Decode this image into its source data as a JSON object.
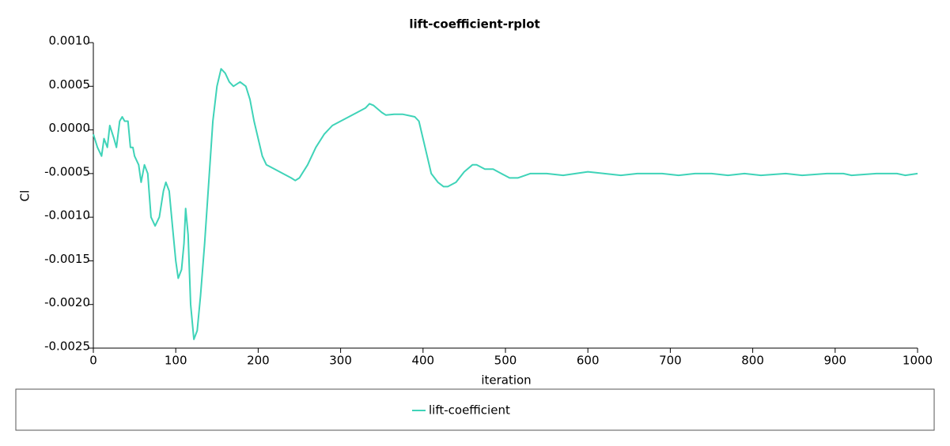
{
  "chart_data": {
    "type": "line",
    "title": "lift-coefficient-rplot",
    "x_label": "iteration",
    "y_label": "Cl",
    "x": [
      0,
      5,
      10,
      13,
      17,
      20,
      25,
      28,
      32,
      35,
      38,
      42,
      45,
      48,
      50,
      55,
      58,
      62,
      66,
      70,
      75,
      80,
      85,
      88,
      92,
      96,
      100,
      103,
      107,
      110,
      112,
      115,
      118,
      122,
      126,
      130,
      135,
      140,
      145,
      150,
      155,
      160,
      165,
      170,
      178,
      185,
      190,
      195,
      200,
      205,
      210,
      220,
      230,
      240,
      245,
      250,
      260,
      270,
      280,
      290,
      300,
      310,
      320,
      330,
      335,
      340,
      350,
      355,
      365,
      375,
      385,
      390,
      395,
      400,
      405,
      410,
      418,
      425,
      430,
      440,
      450,
      460,
      465,
      475,
      485,
      495,
      505,
      515,
      530,
      550,
      570,
      600,
      620,
      640,
      660,
      690,
      710,
      730,
      750,
      770,
      790,
      810,
      840,
      860,
      890,
      910,
      920,
      950,
      975,
      985,
      1000
    ],
    "series": [
      {
        "name": "lift-coefficient",
        "color": "#3fd3b8",
        "values": [
          -5e-05,
          -0.0002,
          -0.0003,
          -0.0001,
          -0.0002,
          5e-05,
          -0.0001,
          -0.0002,
          0.0001,
          0.00015,
          0.0001,
          0.0001,
          -0.0002,
          -0.0002,
          -0.0003,
          -0.0004,
          -0.0006,
          -0.0004,
          -0.0005,
          -0.001,
          -0.0011,
          -0.001,
          -0.0007,
          -0.0006,
          -0.0007,
          -0.0011,
          -0.0015,
          -0.0017,
          -0.0016,
          -0.0013,
          -0.0009,
          -0.0012,
          -0.002,
          -0.0024,
          -0.0023,
          -0.0019,
          -0.0013,
          -0.0006,
          0.0001,
          0.0005,
          0.0007,
          0.00065,
          0.00055,
          0.0005,
          0.00055,
          0.0005,
          0.00035,
          0.0001,
          -0.0001,
          -0.0003,
          -0.0004,
          -0.00045,
          -0.0005,
          -0.00055,
          -0.00058,
          -0.00055,
          -0.0004,
          -0.0002,
          -5e-05,
          5e-05,
          0.0001,
          0.00015,
          0.0002,
          0.00025,
          0.0003,
          0.00028,
          0.0002,
          0.00017,
          0.00018,
          0.00018,
          0.00016,
          0.00015,
          0.0001,
          -0.0001,
          -0.0003,
          -0.0005,
          -0.0006,
          -0.00065,
          -0.00065,
          -0.0006,
          -0.00048,
          -0.0004,
          -0.0004,
          -0.00045,
          -0.00045,
          -0.0005,
          -0.00055,
          -0.00055,
          -0.0005,
          -0.0005,
          -0.00052,
          -0.00048,
          -0.0005,
          -0.00052,
          -0.0005,
          -0.0005,
          -0.00052,
          -0.0005,
          -0.0005,
          -0.00052,
          -0.0005,
          -0.00052,
          -0.0005,
          -0.00052,
          -0.0005,
          -0.0005,
          -0.00052,
          -0.0005,
          -0.0005,
          -0.00052,
          -0.0005
        ]
      }
    ],
    "xlim": [
      0,
      1000
    ],
    "xticks": [
      0,
      100,
      200,
      300,
      400,
      500,
      600,
      700,
      800,
      900,
      1000
    ],
    "ylim": [
      -0.0025,
      0.001
    ],
    "yticks": [
      {
        "value": -0.0025,
        "label": "-0.0025"
      },
      {
        "value": -0.002,
        "label": "-0.0020"
      },
      {
        "value": -0.0015,
        "label": "-0.0015"
      },
      {
        "value": -0.001,
        "label": "-0.0010"
      },
      {
        "value": -0.0005,
        "label": "-0.0005"
      },
      {
        "value": 0,
        "label": "0.0000"
      },
      {
        "value": 0.0005,
        "label": "0.0005"
      },
      {
        "value": 0.001,
        "label": "0.0010"
      }
    ],
    "legend": "bottom"
  }
}
